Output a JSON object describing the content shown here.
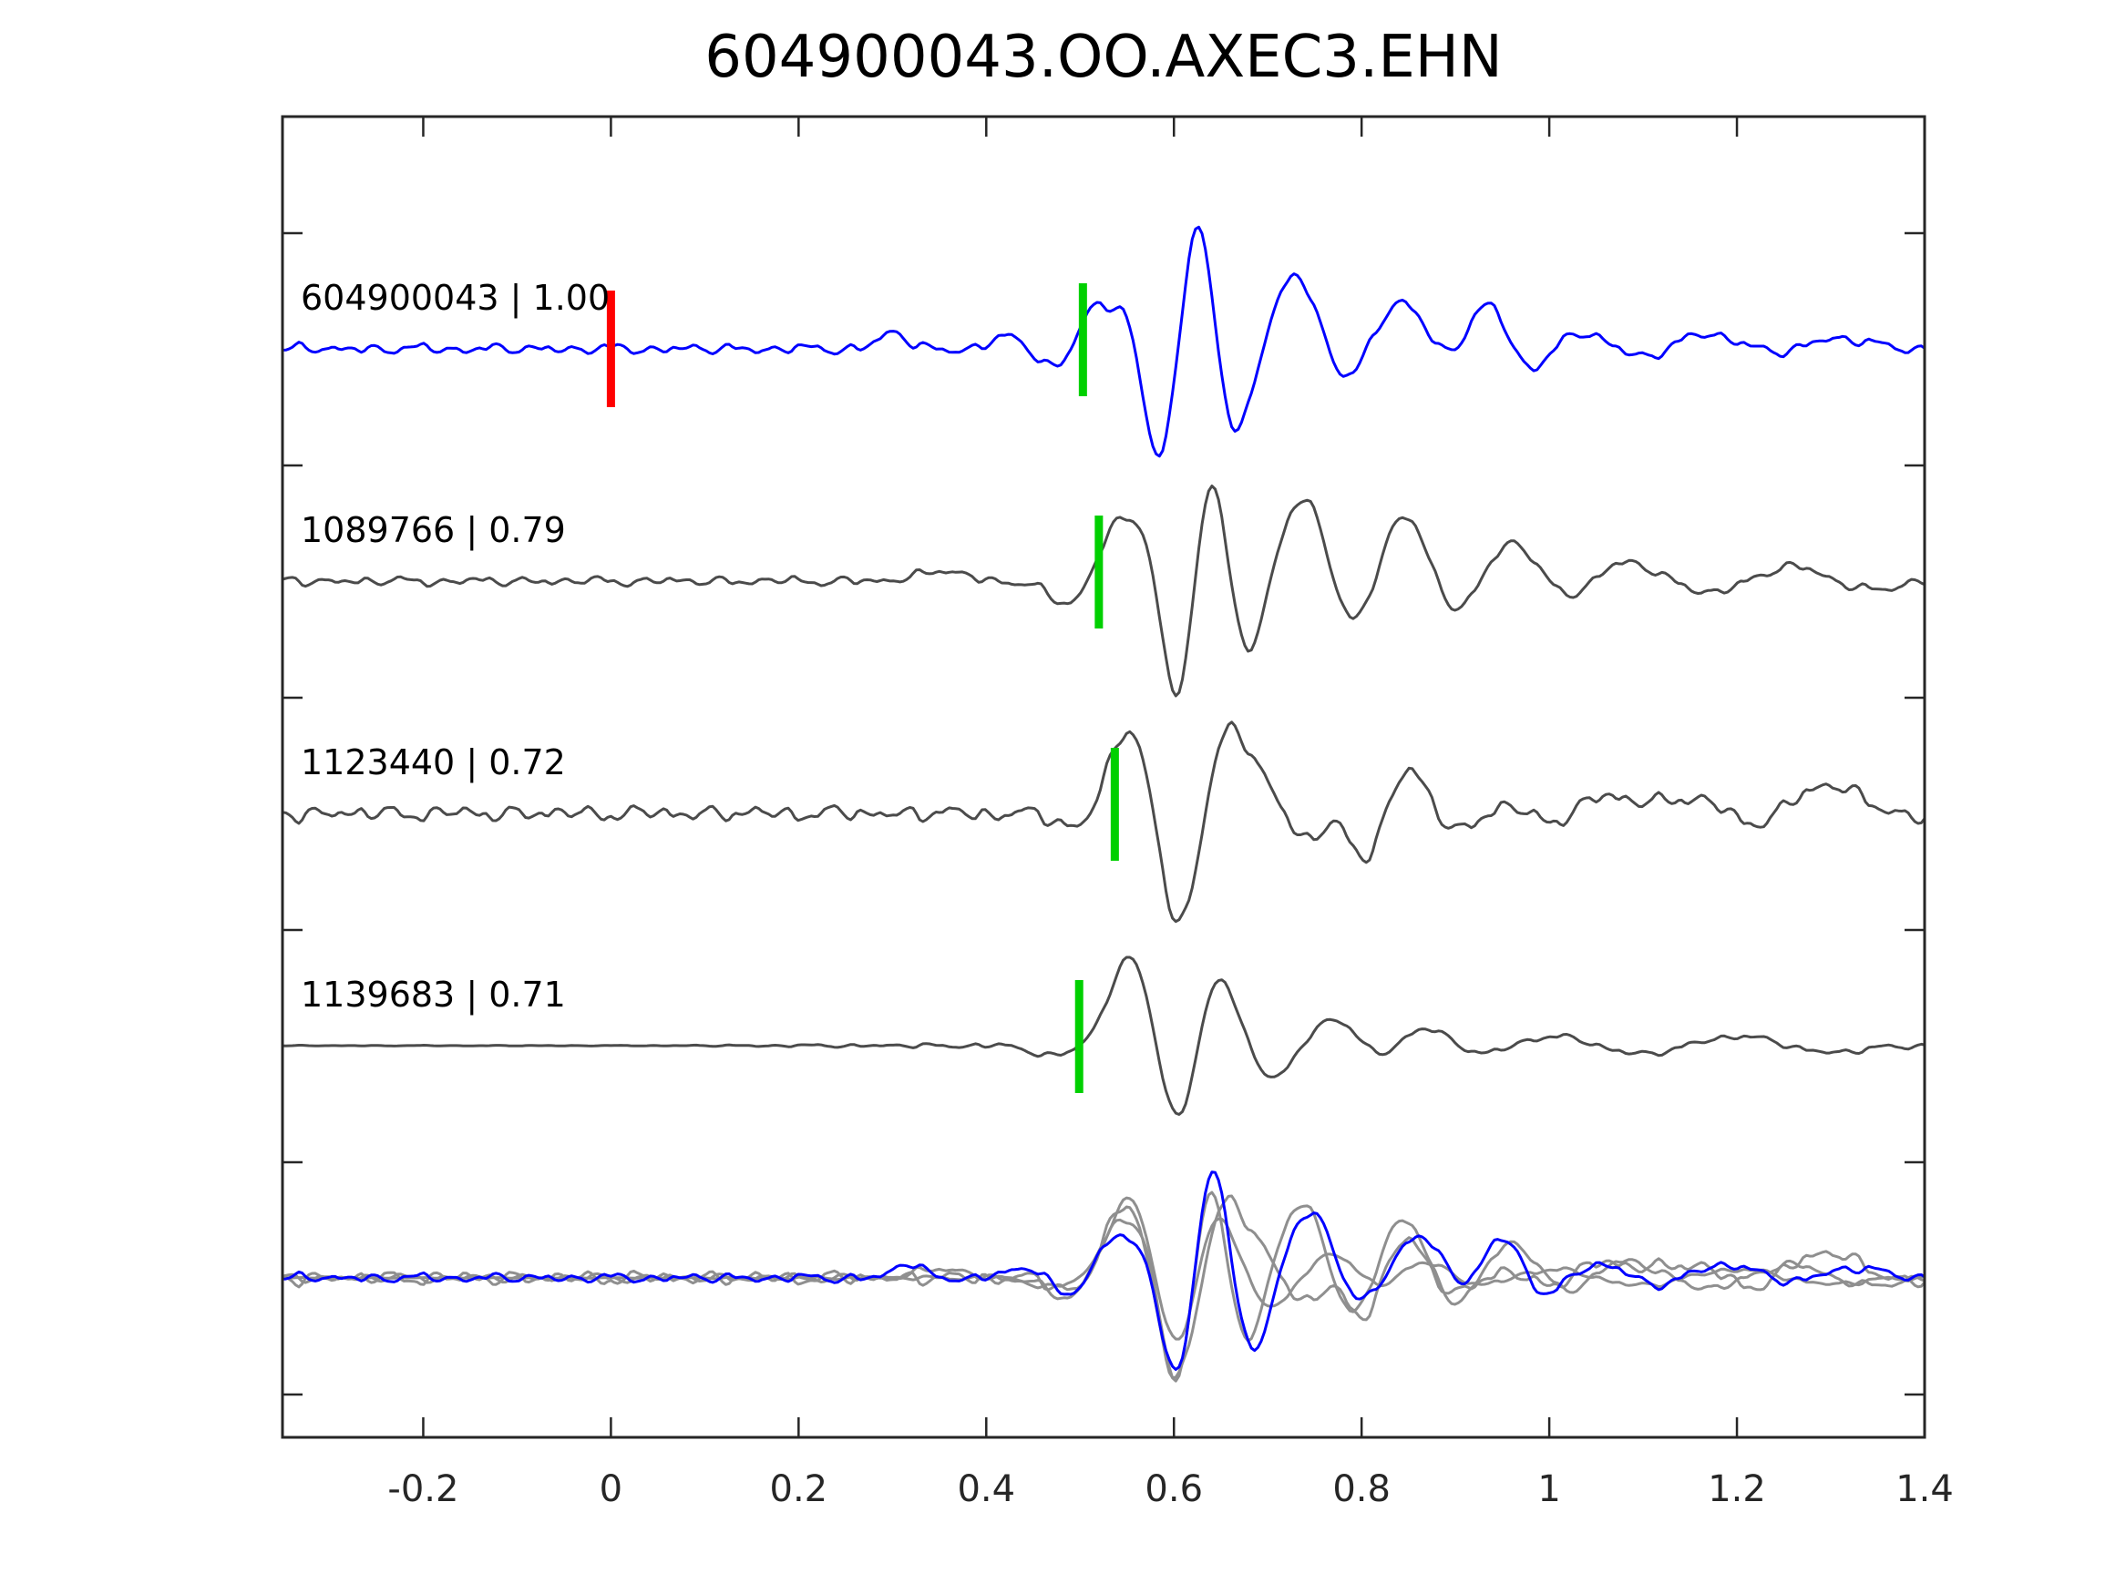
{
  "chart_data": {
    "type": "line",
    "title": "604900043.OO.AXEC3.EHN",
    "xlabel": "",
    "ylabel": "",
    "xlim": [
      -0.35,
      1.4
    ],
    "grid": false,
    "legend": "none",
    "tick_style": "inward-all-sides",
    "x_ticks": {
      "values": [
        -0.2,
        0,
        0.2,
        0.4,
        0.6,
        0.8,
        1,
        1.2,
        1.4
      ],
      "labels": [
        "-0.2",
        "0",
        "0.2",
        "0.4",
        "0.6",
        "0.8",
        "1",
        "1.2",
        "1.4"
      ]
    },
    "colors": {
      "trace_primary": "#0000ff",
      "trace_match": "#4b4b4b",
      "overlay_gray": "#8f8f8f",
      "pick_green": "#00d000",
      "pick_red": "#ff0000",
      "axes": "#262626",
      "text": "#000000"
    },
    "traces": [
      {
        "id": "604900043",
        "label": "604900043 | 1.00",
        "correlation": 1.0,
        "color": "#0000ff",
        "row": 0,
        "picks": [
          {
            "x": 0.0,
            "color": "#ff0000",
            "kind": "origin"
          },
          {
            "x": 0.503,
            "color": "#00d000",
            "kind": "cc-pick"
          }
        ],
        "noise": {
          "amp": 0.05,
          "seed": 3
        },
        "lobes": [
          [
            0.3,
            0.1,
            0.02
          ],
          [
            0.43,
            0.09,
            0.025
          ],
          [
            0.47,
            -0.12,
            0.028
          ],
          [
            0.515,
            0.26,
            0.022
          ],
          [
            0.552,
            0.27,
            0.022
          ],
          [
            0.585,
            -0.72,
            0.026
          ],
          [
            0.625,
            0.85,
            0.024
          ],
          [
            0.665,
            -0.55,
            0.026
          ],
          [
            0.73,
            0.45,
            0.034
          ],
          [
            0.78,
            -0.2,
            0.03
          ],
          [
            0.845,
            0.3,
            0.034
          ],
          [
            0.89,
            -0.1,
            0.03
          ],
          [
            0.935,
            0.3,
            0.03
          ],
          [
            0.975,
            -0.15,
            0.03
          ],
          [
            1.04,
            0.1,
            0.04
          ],
          [
            1.1,
            -0.07,
            0.04
          ],
          [
            1.17,
            0.1,
            0.05
          ],
          [
            1.24,
            -0.05,
            0.045
          ],
          [
            1.3,
            0.07,
            0.05
          ]
        ]
      },
      {
        "id": "1089766",
        "label": "1089766 | 0.79",
        "correlation": 0.79,
        "color": "#4b4b4b",
        "row": 1,
        "picks": [
          {
            "x": 0.52,
            "color": "#00d000",
            "kind": "cc-pick"
          }
        ],
        "noise": {
          "amp": 0.045,
          "seed": 7
        },
        "lobes": [
          [
            0.35,
            0.07,
            0.03
          ],
          [
            0.49,
            -0.16,
            0.03
          ],
          [
            0.545,
            0.38,
            0.034
          ],
          [
            0.575,
            0.18,
            0.02
          ],
          [
            0.603,
            -0.8,
            0.026
          ],
          [
            0.64,
            0.78,
            0.024
          ],
          [
            0.675,
            -0.5,
            0.026
          ],
          [
            0.74,
            0.52,
            0.034
          ],
          [
            0.79,
            -0.33,
            0.03
          ],
          [
            0.845,
            0.42,
            0.034
          ],
          [
            0.9,
            -0.2,
            0.032
          ],
          [
            0.96,
            0.25,
            0.034
          ],
          [
            1.02,
            -0.1,
            0.035
          ],
          [
            1.08,
            0.12,
            0.04
          ],
          [
            1.18,
            -0.07,
            0.045
          ],
          [
            1.26,
            0.1,
            0.05
          ],
          [
            1.33,
            -0.06,
            0.045
          ]
        ]
      },
      {
        "id": "1123440",
        "label": "1123440 | 0.72",
        "correlation": 0.72,
        "color": "#4b4b4b",
        "row": 2,
        "picks": [
          {
            "x": 0.537,
            "color": "#00d000",
            "kind": "cc-pick"
          }
        ],
        "noise": {
          "amp": 0.075,
          "seed": 11
        },
        "lobes": [
          [
            0.5,
            -0.1,
            0.03
          ],
          [
            0.55,
            0.52,
            0.03
          ],
          [
            0.605,
            -0.68,
            0.026
          ],
          [
            0.66,
            0.5,
            0.028
          ],
          [
            0.7,
            0.15,
            0.03
          ],
          [
            0.74,
            -0.18,
            0.03
          ],
          [
            0.77,
            0.05,
            0.022
          ],
          [
            0.805,
            -0.3,
            0.028
          ],
          [
            0.85,
            0.3,
            0.034
          ],
          [
            0.9,
            -0.15,
            0.038
          ],
          [
            0.95,
            0.1,
            0.038
          ],
          [
            1.0,
            -0.1,
            0.045
          ],
          [
            1.05,
            0.12,
            0.045
          ],
          [
            1.15,
            0.1,
            0.05
          ],
          [
            1.22,
            -0.08,
            0.045
          ],
          [
            1.28,
            0.14,
            0.04
          ],
          [
            1.33,
            0.1,
            0.04
          ],
          [
            1.38,
            -0.05,
            0.04
          ]
        ]
      },
      {
        "id": "1139683",
        "label": "1139683 | 0.71",
        "correlation": 0.71,
        "color": "#4b4b4b",
        "row": 3,
        "picks": [
          {
            "x": 0.499,
            "color": "#00d000",
            "kind": "cc-pick"
          }
        ],
        "noise": {
          "amp": 0.03,
          "seed": 17
        },
        "ramp": {
          "base": 0.12,
          "x0": 0.05,
          "x1": 0.45
        },
        "lobes": [
          [
            0.47,
            -0.06,
            0.03
          ],
          [
            0.555,
            0.55,
            0.032
          ],
          [
            0.603,
            -0.52,
            0.027
          ],
          [
            0.648,
            0.45,
            0.028
          ],
          [
            0.705,
            -0.2,
            0.034
          ],
          [
            0.75,
            0.08,
            0.028
          ],
          [
            0.78,
            0.14,
            0.028
          ],
          [
            0.82,
            -0.1,
            0.03
          ],
          [
            0.865,
            0.12,
            0.038
          ],
          [
            0.93,
            -0.06,
            0.04
          ],
          [
            1.0,
            0.06,
            0.05
          ],
          [
            1.1,
            -0.05,
            0.05
          ],
          [
            1.2,
            0.06,
            0.05
          ],
          [
            1.3,
            -0.04,
            0.05
          ]
        ]
      }
    ],
    "overlay": {
      "row": 4,
      "description": "all traces aligned on cc-pick, superimposed",
      "scale": 0.9,
      "members": [
        {
          "trace": 1,
          "color": "#8f8f8f",
          "shift": -0.001
        },
        {
          "trace": 2,
          "color": "#8f8f8f",
          "shift": -0.003
        },
        {
          "trace": 3,
          "color": "#8f8f8f",
          "shift": -0.001
        },
        {
          "trace": 0,
          "color": "#0000ff",
          "shift": 0.017
        }
      ]
    }
  }
}
